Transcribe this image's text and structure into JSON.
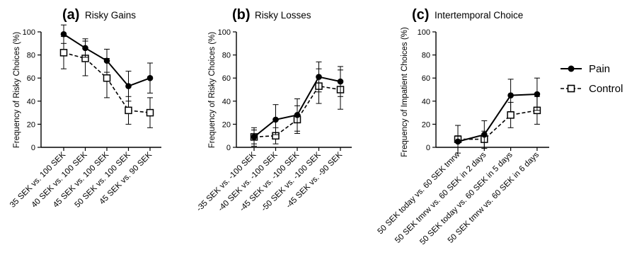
{
  "legend": {
    "items": [
      {
        "label": "Pain",
        "marker": "filled-circle",
        "line": "solid"
      },
      {
        "label": "Control",
        "marker": "open-square",
        "line": "dashed"
      }
    ],
    "placement": "right"
  },
  "chart_data": [
    {
      "type": "line",
      "panel_letter": "(a)",
      "title": "Risky Gains",
      "ylabel": "Frequency of Risky  Choices (%)",
      "xlabel": "",
      "ylim": [
        0,
        100
      ],
      "yticks": [
        0,
        20,
        40,
        60,
        80,
        100
      ],
      "categories": [
        "35 SEK vs. 100 SEK",
        "40 SEK vs. 100 SEK",
        "45 SEK vs. 100 SEK",
        "50 SEK vs. 100 SEK",
        "45 SEK vs. 90 SEK"
      ],
      "series": [
        {
          "name": "Pain",
          "values": [
            98,
            86,
            75,
            53,
            60
          ],
          "error": [
            8,
            8,
            10,
            13,
            13
          ]
        },
        {
          "name": "Control",
          "values": [
            82,
            77,
            60,
            32,
            30
          ],
          "error": [
            14,
            15,
            17,
            12,
            13
          ]
        }
      ],
      "grid": false
    },
    {
      "type": "line",
      "panel_letter": "(b)",
      "title": "Risky Losses",
      "ylabel": "Frequency of Risky  Choices (%)",
      "xlabel": "",
      "ylim": [
        0,
        100
      ],
      "yticks": [
        0,
        20,
        40,
        60,
        80,
        100
      ],
      "categories": [
        "-35 SEK vs. -100 SEK",
        "-40 SEK vs. -100 SEK",
        "-45 SEK vs. -100 SEK",
        "-50 SEK vs. -100 SEK",
        "-45 SEK vs. -90 SEK"
      ],
      "series": [
        {
          "name": "Pain",
          "values": [
            9,
            24,
            28,
            61,
            57
          ],
          "error": [
            8,
            13,
            14,
            13,
            13
          ]
        },
        {
          "name": "Control",
          "values": [
            9,
            10,
            24,
            53,
            50
          ],
          "error": [
            6,
            7,
            12,
            15,
            17
          ]
        }
      ],
      "grid": false
    },
    {
      "type": "line",
      "panel_letter": "(c)",
      "title": "Intertemporal Choice",
      "ylabel": "Frequency of Impatient Choices (%)",
      "xlabel": "",
      "ylim": [
        0,
        100
      ],
      "yticks": [
        0,
        20,
        40,
        60,
        80,
        100
      ],
      "categories": [
        "50 SEK today vs. 60 SEK tmrw",
        "50 SEK tmrw vs. 60 SEK in 2 days",
        "50 SEK today vs. 60 SEK in 5 days",
        "50 SEK tmrw vs. 60 SEK in 6 days"
      ],
      "series": [
        {
          "name": "Pain",
          "values": [
            5,
            11,
            45,
            46
          ],
          "error": [
            5,
            12,
            14,
            14
          ]
        },
        {
          "name": "Control",
          "values": [
            7,
            7,
            28,
            32
          ],
          "error": [
            12,
            7,
            11,
            12
          ]
        }
      ],
      "grid": false
    }
  ]
}
